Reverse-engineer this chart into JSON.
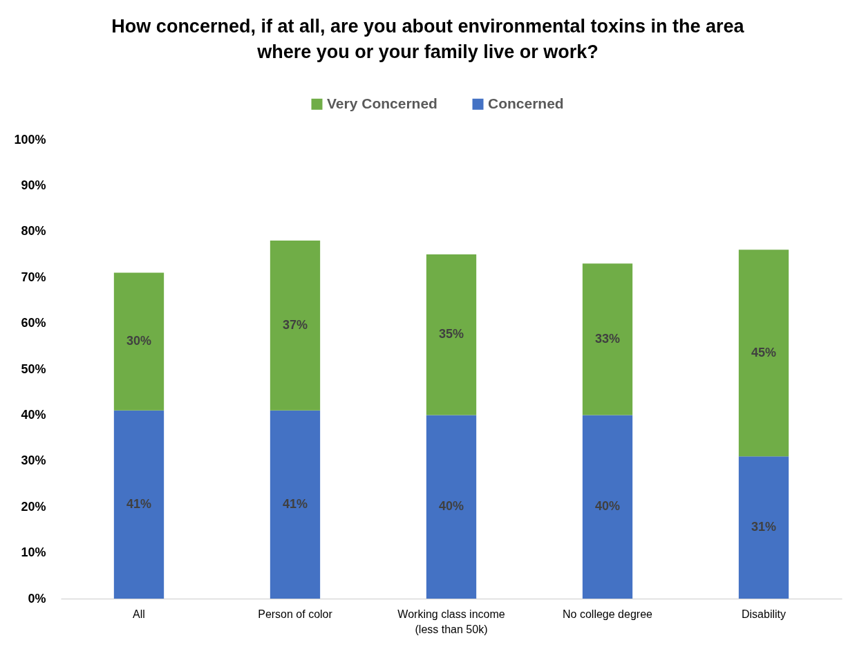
{
  "chart_data": {
    "type": "bar",
    "title": "How concerned, if at all, are you about environmental toxins in the area\nwhere you or your family live or work?",
    "categories": [
      "All",
      "Person of color",
      "Working class income\n(less than 50k)",
      "No college degree",
      "Disability"
    ],
    "stacked": true,
    "series": [
      {
        "name": "Concerned",
        "color": "#4472c4",
        "values": [
          41,
          41,
          40,
          40,
          31
        ],
        "value_labels": [
          "41%",
          "41%",
          "40%",
          "40%",
          "31%"
        ]
      },
      {
        "name": "Very Concerned",
        "color": "#70ad47",
        "values": [
          30,
          37,
          35,
          33,
          45
        ],
        "value_labels": [
          "30%",
          "37%",
          "35%",
          "33%",
          "45%"
        ]
      }
    ],
    "ylim": [
      0,
      100
    ],
    "yticks": [
      {
        "value": 0,
        "label": "0%"
      },
      {
        "value": 10,
        "label": "10%"
      },
      {
        "value": 20,
        "label": "20%"
      },
      {
        "value": 30,
        "label": "30%"
      },
      {
        "value": 40,
        "label": "40%"
      },
      {
        "value": 50,
        "label": "50%"
      },
      {
        "value": 60,
        "label": "60%"
      },
      {
        "value": 70,
        "label": "70%"
      },
      {
        "value": 80,
        "label": "80%"
      },
      {
        "value": 90,
        "label": "90%"
      },
      {
        "value": 100,
        "label": "100%"
      }
    ],
    "grid": false,
    "legend": "top"
  }
}
